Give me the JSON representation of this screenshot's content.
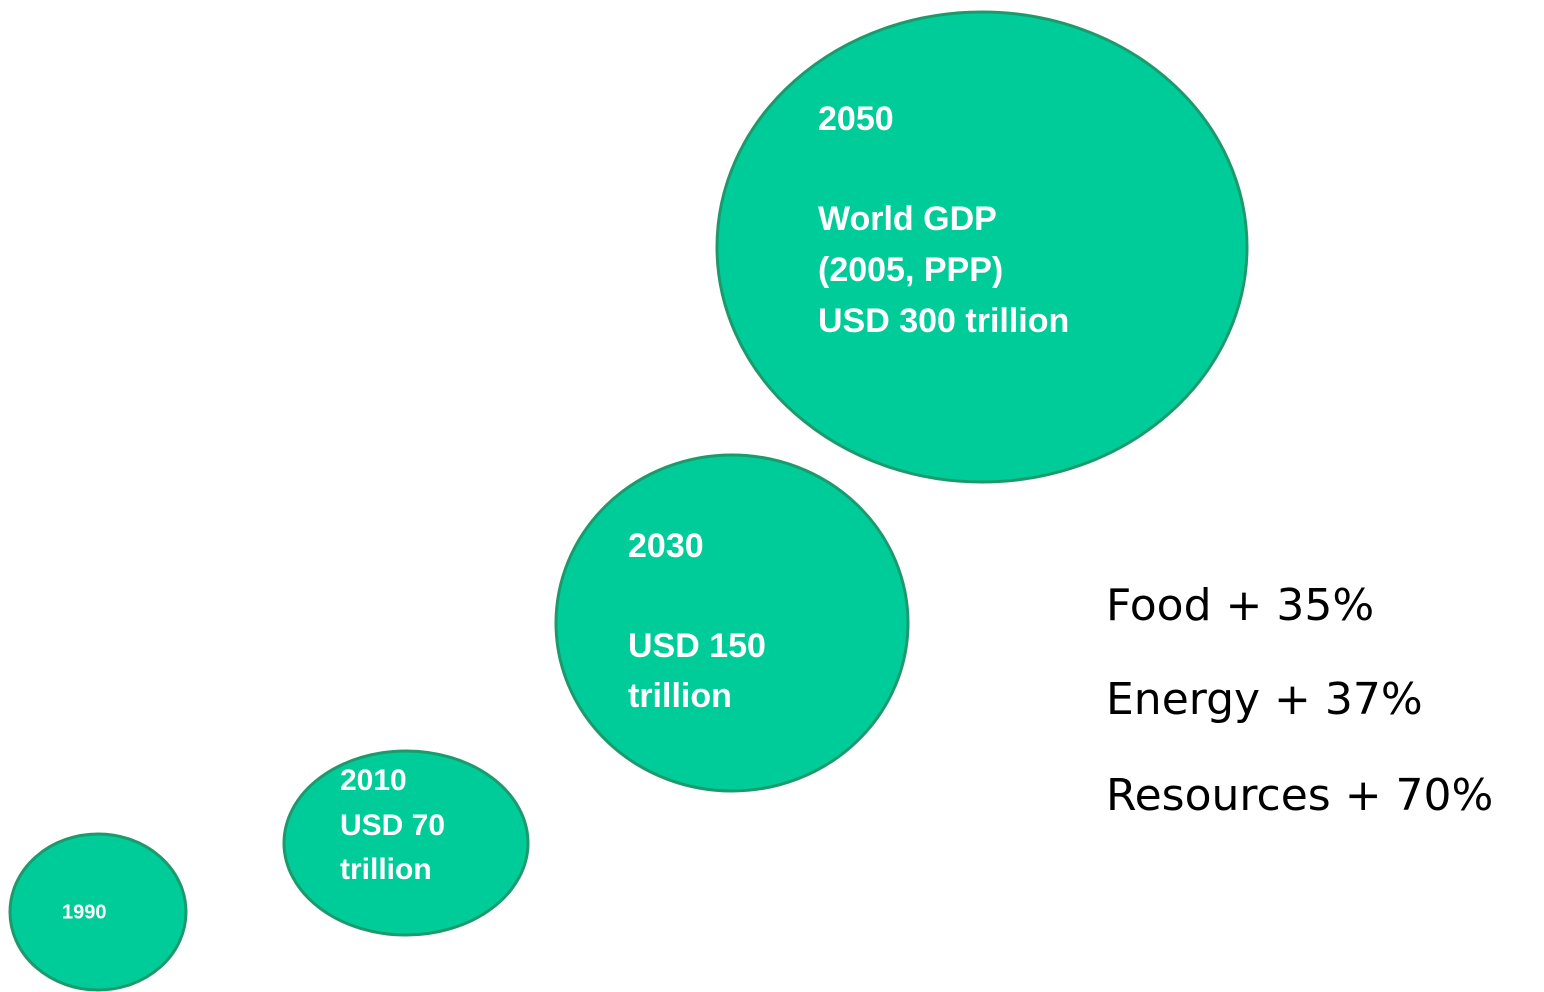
{
  "bubbles": [
    {
      "year": "1990",
      "lines": []
    },
    {
      "year": "2010",
      "lines": [
        "USD 70",
        "trillion"
      ]
    },
    {
      "year": "2030",
      "lines": [
        "USD 150",
        "trillion"
      ]
    },
    {
      "year": "2050",
      "lines": [
        "World GDP",
        "(2005, PPP)",
        "USD 300 trillion"
      ]
    }
  ],
  "increases": [
    "Food + 35%",
    "Energy + 37%",
    "Resources + 70%"
  ]
}
